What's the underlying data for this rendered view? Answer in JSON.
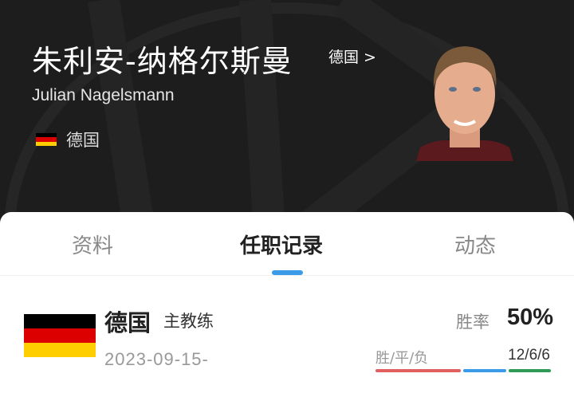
{
  "header": {
    "name_cn": "朱利安-纳格尔斯曼",
    "team_link": "德国 >",
    "name_en": "Julian Nagelsmann",
    "nationality": "德国"
  },
  "tabs": [
    {
      "label": "资料",
      "active": false
    },
    {
      "label": "任职记录",
      "active": true
    },
    {
      "label": "动态",
      "active": false
    }
  ],
  "career": [
    {
      "team": "德国",
      "role": "主教练",
      "start_date": "2023-09-15-",
      "win_rate_label": "胜率",
      "win_rate": "50%",
      "wdl_label": "胜/平/负",
      "wdl": "12/6/6",
      "wins": 12,
      "draws": 6,
      "losses": 6
    }
  ],
  "colors": {
    "accent": "#3a9be8",
    "win": "#e0605f",
    "draw": "#3a9be8",
    "loss": "#2e9a56",
    "flag": [
      "#000000",
      "#dd0000",
      "#ffce00"
    ]
  }
}
